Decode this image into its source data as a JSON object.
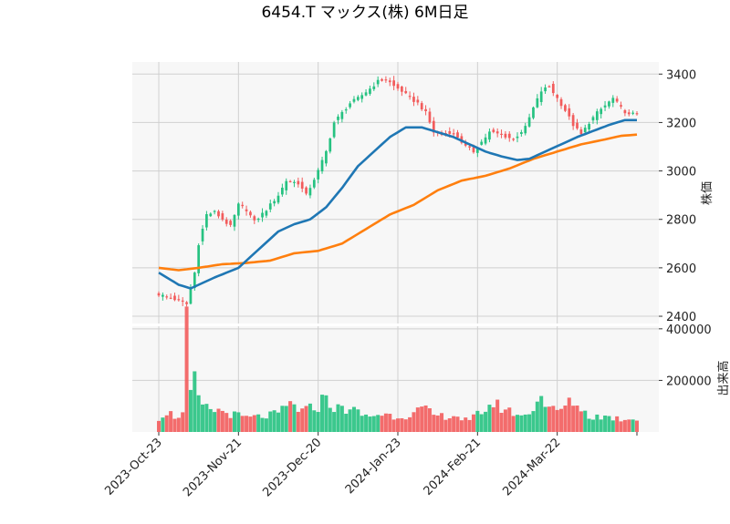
{
  "chart_data": {
    "type": "candlestick",
    "title": "6454.T マックス(株) 6M日足",
    "colors": {
      "up": "#26c281",
      "down": "#f25c5c",
      "ma_short": "#1f77b4",
      "ma_long": "#ff7f0e",
      "grid": "#d0d0d0",
      "panel_bg": "#f7f7f7"
    },
    "price_panel": {
      "ylabel": "株価",
      "ylim": [
        2370,
        3450
      ],
      "yticks": [
        2400,
        2600,
        2800,
        3000,
        3200,
        3400
      ],
      "ytick_labels": [
        "2400",
        "2600",
        "2800",
        "3000",
        "3200",
        "3400"
      ],
      "grid": true
    },
    "volume_panel": {
      "ylabel": "出来高",
      "ylim": [
        0,
        410000
      ],
      "yticks": [
        200000,
        400000
      ],
      "ytick_labels": [
        "200000",
        "400000"
      ],
      "grid": true
    },
    "x_axis": {
      "tick_labels": [
        "2023-Oct-23",
        "2023-Nov-21",
        "2023-Dec-20",
        "2024-Jan-23",
        "2024-Feb-21",
        "2024-Mar-22"
      ],
      "tick_index": [
        0,
        20,
        40,
        60,
        80,
        100
      ],
      "n_bars": 121,
      "grid": true
    },
    "price_anchors": [
      [
        0,
        2490
      ],
      [
        4,
        2470
      ],
      [
        7,
        2450
      ],
      [
        9,
        2580
      ],
      [
        10,
        2700
      ],
      [
        12,
        2820
      ],
      [
        14,
        2830
      ],
      [
        16,
        2800
      ],
      [
        18,
        2770
      ],
      [
        20,
        2860
      ],
      [
        22,
        2840
      ],
      [
        24,
        2790
      ],
      [
        27,
        2840
      ],
      [
        30,
        2900
      ],
      [
        32,
        2960
      ],
      [
        35,
        2950
      ],
      [
        37,
        2900
      ],
      [
        40,
        3000
      ],
      [
        42,
        3080
      ],
      [
        44,
        3200
      ],
      [
        46,
        3240
      ],
      [
        48,
        3280
      ],
      [
        50,
        3300
      ],
      [
        53,
        3340
      ],
      [
        55,
        3370
      ],
      [
        57,
        3380
      ],
      [
        59,
        3350
      ],
      [
        61,
        3330
      ],
      [
        63,
        3300
      ],
      [
        65,
        3280
      ],
      [
        67,
        3240
      ],
      [
        69,
        3160
      ],
      [
        71,
        3150
      ],
      [
        73,
        3160
      ],
      [
        75,
        3140
      ],
      [
        77,
        3100
      ],
      [
        79,
        3080
      ],
      [
        81,
        3120
      ],
      [
        83,
        3160
      ],
      [
        86,
        3150
      ],
      [
        89,
        3130
      ],
      [
        92,
        3180
      ],
      [
        94,
        3260
      ],
      [
        96,
        3330
      ],
      [
        98,
        3350
      ],
      [
        100,
        3300
      ],
      [
        102,
        3250
      ],
      [
        104,
        3190
      ],
      [
        106,
        3150
      ],
      [
        108,
        3200
      ],
      [
        110,
        3240
      ],
      [
        112,
        3270
      ],
      [
        114,
        3300
      ],
      [
        116,
        3260
      ],
      [
        118,
        3230
      ],
      [
        120,
        3240
      ]
    ],
    "ma_short_anchors": [
      [
        0,
        2580
      ],
      [
        5,
        2530
      ],
      [
        8,
        2515
      ],
      [
        14,
        2560
      ],
      [
        20,
        2600
      ],
      [
        26,
        2690
      ],
      [
        30,
        2750
      ],
      [
        34,
        2780
      ],
      [
        38,
        2800
      ],
      [
        42,
        2850
      ],
      [
        46,
        2930
      ],
      [
        50,
        3020
      ],
      [
        54,
        3080
      ],
      [
        58,
        3140
      ],
      [
        62,
        3180
      ],
      [
        66,
        3180
      ],
      [
        70,
        3160
      ],
      [
        74,
        3140
      ],
      [
        78,
        3110
      ],
      [
        82,
        3080
      ],
      [
        86,
        3060
      ],
      [
        90,
        3045
      ],
      [
        93,
        3050
      ],
      [
        97,
        3080
      ],
      [
        101,
        3110
      ],
      [
        105,
        3140
      ],
      [
        109,
        3165
      ],
      [
        113,
        3190
      ],
      [
        117,
        3210
      ],
      [
        120,
        3210
      ]
    ],
    "ma_long_anchors": [
      [
        0,
        2600
      ],
      [
        5,
        2590
      ],
      [
        10,
        2600
      ],
      [
        16,
        2615
      ],
      [
        22,
        2620
      ],
      [
        28,
        2630
      ],
      [
        34,
        2660
      ],
      [
        40,
        2670
      ],
      [
        46,
        2700
      ],
      [
        52,
        2760
      ],
      [
        58,
        2820
      ],
      [
        64,
        2860
      ],
      [
        70,
        2920
      ],
      [
        76,
        2960
      ],
      [
        82,
        2980
      ],
      [
        88,
        3010
      ],
      [
        94,
        3050
      ],
      [
        100,
        3080
      ],
      [
        106,
        3110
      ],
      [
        112,
        3130
      ],
      [
        116,
        3145
      ],
      [
        120,
        3150
      ]
    ],
    "volume_anchors": [
      [
        0,
        55000
      ],
      [
        2,
        80000
      ],
      [
        4,
        60000
      ],
      [
        6,
        70000
      ],
      [
        7,
        400000
      ],
      [
        8,
        150000
      ],
      [
        9,
        190000
      ],
      [
        10,
        120000
      ],
      [
        12,
        90000
      ],
      [
        16,
        80000
      ],
      [
        18,
        70000
      ],
      [
        22,
        55000
      ],
      [
        26,
        60000
      ],
      [
        30,
        70000
      ],
      [
        33,
        110000
      ],
      [
        36,
        80000
      ],
      [
        40,
        100000
      ],
      [
        42,
        145000
      ],
      [
        44,
        90000
      ],
      [
        48,
        90000
      ],
      [
        52,
        60000
      ],
      [
        56,
        70000
      ],
      [
        60,
        60000
      ],
      [
        64,
        70000
      ],
      [
        66,
        90000
      ],
      [
        70,
        60000
      ],
      [
        74,
        65000
      ],
      [
        78,
        40000
      ],
      [
        80,
        70000
      ],
      [
        84,
        110000
      ],
      [
        88,
        80000
      ],
      [
        92,
        60000
      ],
      [
        96,
        140000
      ],
      [
        98,
        90000
      ],
      [
        100,
        80000
      ],
      [
        104,
        120000
      ],
      [
        108,
        60000
      ],
      [
        112,
        60000
      ],
      [
        116,
        50000
      ],
      [
        120,
        55000
      ]
    ]
  }
}
